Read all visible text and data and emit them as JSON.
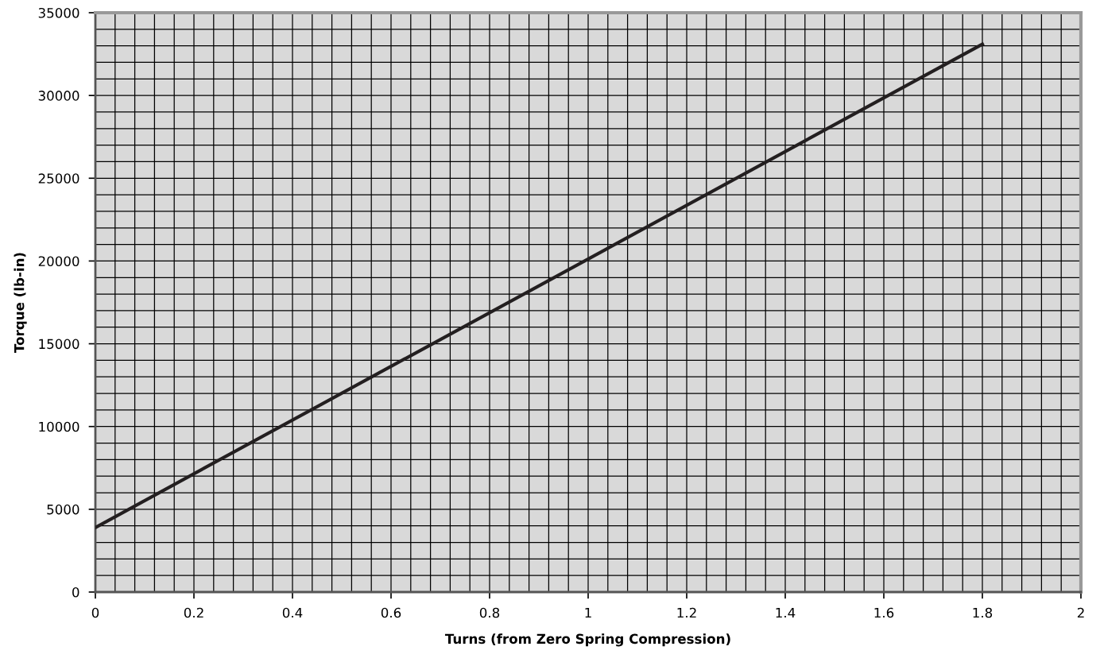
{
  "chart_data": {
    "type": "line",
    "xlabel": "Turns (from Zero Spring Compression)",
    "ylabel": "Torque (lb-in)",
    "x": [
      0,
      1.8
    ],
    "series": [
      {
        "color": "#231f20",
        "values": [
          3900,
          33100
        ]
      }
    ],
    "xlim": [
      0,
      2
    ],
    "xticks": [
      0,
      0.2,
      0.4,
      0.6,
      0.8,
      1,
      1.2,
      1.4,
      1.6,
      1.8,
      2
    ],
    "ylim": [
      0,
      35000
    ],
    "yticks": [
      0,
      5000,
      10000,
      15000,
      20000,
      25000,
      30000,
      35000
    ],
    "grid": true,
    "legend": false,
    "marker": "none",
    "line_style": "solid"
  }
}
